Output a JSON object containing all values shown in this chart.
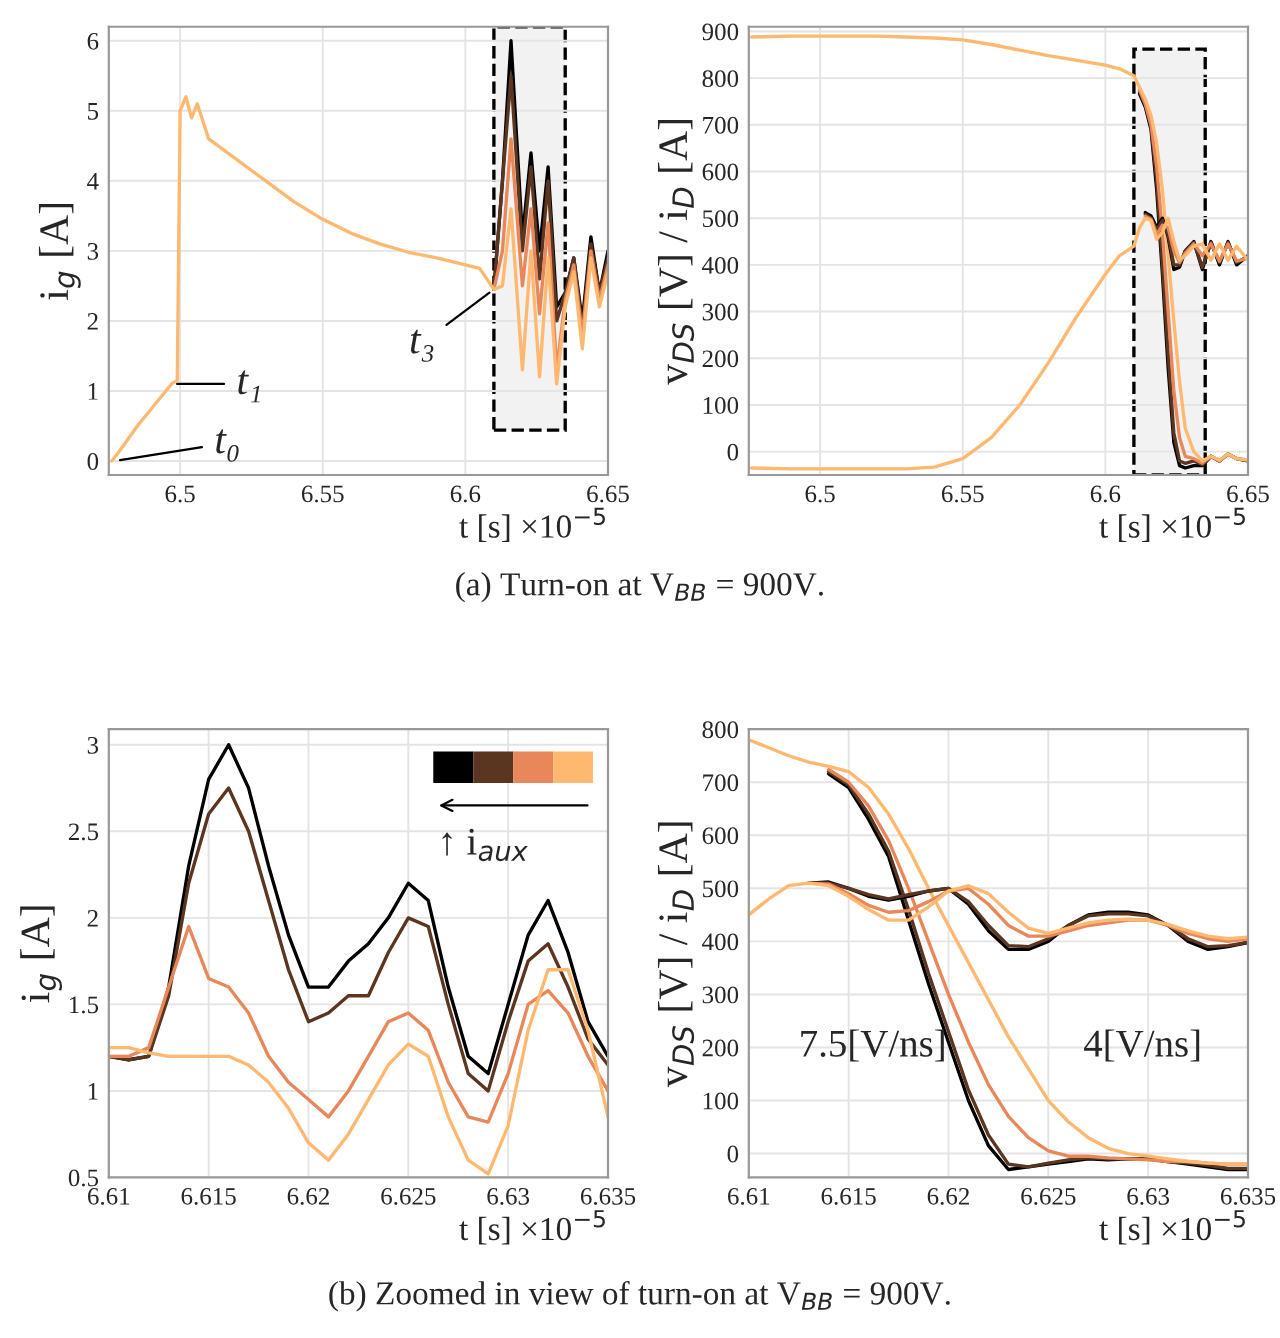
{
  "chart_data": [
    {
      "type": "line",
      "xlabel": "t [s] ×10$^{−5}$",
      "ylabel": "i$_{g}$ [A]",
      "xlim": [
        6.475,
        6.65
      ],
      "ylim": [
        -0.2,
        6.2
      ],
      "xticks": [
        6.5,
        6.55,
        6.6,
        6.65
      ],
      "yticks": [
        0,
        1,
        2,
        3,
        4,
        5,
        6
      ],
      "grid": true,
      "legend": false,
      "x": [
        6.476,
        6.478,
        6.485,
        6.49,
        6.495,
        6.497,
        6.499,
        6.5,
        6.502,
        6.504,
        6.506,
        6.51,
        6.52,
        6.53,
        6.54,
        6.55,
        6.56,
        6.57,
        6.58,
        6.59,
        6.6,
        6.605,
        6.61,
        6.613,
        6.616,
        6.62,
        6.623,
        6.626,
        6.629,
        6.632,
        6.635,
        6.638,
        6.641,
        6.644,
        6.647,
        6.65
      ],
      "series": [
        {
          "color": "#000000",
          "values": [
            null,
            null,
            null,
            null,
            null,
            null,
            null,
            null,
            null,
            null,
            null,
            null,
            null,
            null,
            null,
            null,
            null,
            null,
            null,
            null,
            null,
            null,
            2.45,
            4.0,
            6.0,
            3.2,
            4.4,
            3.0,
            4.2,
            2.2,
            2.4,
            2.9,
            2.0,
            3.2,
            2.4,
            3.0
          ]
        },
        {
          "color": "#5a3520",
          "values": [
            null,
            null,
            null,
            null,
            null,
            null,
            null,
            null,
            null,
            null,
            null,
            null,
            null,
            null,
            null,
            null,
            null,
            null,
            null,
            null,
            null,
            null,
            2.45,
            4.0,
            5.5,
            3.0,
            4.2,
            2.6,
            4.0,
            2.0,
            2.4,
            2.9,
            1.9,
            3.1,
            2.4,
            2.9
          ]
        },
        {
          "color": "#e8875a",
          "values": [
            null,
            null,
            null,
            null,
            null,
            null,
            null,
            null,
            null,
            null,
            null,
            null,
            null,
            null,
            null,
            null,
            null,
            null,
            null,
            null,
            null,
            null,
            2.45,
            3.0,
            4.6,
            2.5,
            3.6,
            2.1,
            3.4,
            1.3,
            2.3,
            2.8,
            1.8,
            3.0,
            2.3,
            2.8
          ]
        },
        {
          "color": "#ffb870",
          "values": [
            0.0,
            0.1,
            0.5,
            0.75,
            1.0,
            1.1,
            1.15,
            5.0,
            5.2,
            4.9,
            5.1,
            4.6,
            4.3,
            4.0,
            3.7,
            3.45,
            3.25,
            3.1,
            2.98,
            2.9,
            2.8,
            2.75,
            2.45,
            2.5,
            3.6,
            1.3,
            3.0,
            1.2,
            2.9,
            1.1,
            2.2,
            2.7,
            1.6,
            2.9,
            2.2,
            2.7
          ]
        }
      ],
      "bands": [
        {
          "axis": "x",
          "from": 6.61,
          "to": 6.635
        }
      ],
      "annotations": [
        "(a) Turn-on at V$_{BB}$ = 900V.",
        {
          "text": "t₀",
          "x": 6.477,
          "y": 0.0
        },
        {
          "text": "t₁",
          "x": 6.497,
          "y": 1.1
        },
        {
          "text": "t₃",
          "x": 6.61,
          "y": 2.45
        }
      ]
    },
    {
      "type": "line",
      "xlabel": "t [s] ×10$^{−5}$",
      "ylabel": "v$_{DS}$ [V] / i$_{D}$ [A]",
      "xlim": [
        6.475,
        6.65
      ],
      "ylim": [
        -50,
        910
      ],
      "xticks": [
        6.5,
        6.55,
        6.6,
        6.65
      ],
      "yticks": [
        0,
        100,
        200,
        300,
        400,
        500,
        600,
        700,
        800,
        900
      ],
      "grid": true,
      "legend": false,
      "x": [
        6.476,
        6.49,
        6.5,
        6.51,
        6.52,
        6.53,
        6.54,
        6.55,
        6.56,
        6.57,
        6.58,
        6.59,
        6.6,
        6.605,
        6.61,
        6.612,
        6.614,
        6.616,
        6.618,
        6.62,
        6.622,
        6.624,
        6.626,
        6.628,
        6.631,
        6.634,
        6.637,
        6.64,
        6.643,
        6.646,
        6.65
      ],
      "series": [
        {
          "color": "#000000",
          "values": [
            null,
            null,
            null,
            null,
            null,
            null,
            null,
            null,
            null,
            null,
            null,
            null,
            null,
            null,
            null,
            766,
            738,
            690,
            560,
            380,
            180,
            20,
            -30,
            -35,
            -30,
            -30,
            -10,
            -20,
            -5,
            -15,
            -20
          ]
        },
        {
          "color": "#5a3520",
          "values": [
            null,
            null,
            null,
            null,
            null,
            null,
            null,
            null,
            null,
            null,
            null,
            null,
            null,
            null,
            null,
            770,
            742,
            695,
            580,
            400,
            210,
            40,
            -20,
            -25,
            -20,
            -28,
            -10,
            -20,
            -5,
            -15,
            -20
          ]
        },
        {
          "color": "#e8875a",
          "values": [
            null,
            null,
            null,
            null,
            null,
            null,
            null,
            null,
            null,
            null,
            null,
            null,
            null,
            null,
            null,
            775,
            745,
            700,
            610,
            470,
            300,
            130,
            30,
            -10,
            -15,
            -25,
            -10,
            -20,
            -5,
            -15,
            -18
          ]
        },
        {
          "color": "#ffb870",
          "values": [
            888,
            890,
            890,
            890,
            890,
            888,
            886,
            882,
            872,
            860,
            848,
            838,
            828,
            820,
            805,
            780,
            755,
            720,
            660,
            560,
            420,
            280,
            150,
            50,
            0,
            -20,
            -10,
            -18,
            -5,
            -15,
            -18
          ]
        },
        {
          "color": "#000000",
          "values": [
            null,
            null,
            null,
            null,
            null,
            null,
            null,
            null,
            null,
            null,
            null,
            null,
            null,
            null,
            null,
            null,
            512,
            505,
            480,
            500,
            460,
            390,
            395,
            430,
            450,
            390,
            450,
            400,
            450,
            400,
            420
          ]
        },
        {
          "color": "#5a3520",
          "values": [
            null,
            null,
            null,
            null,
            null,
            null,
            null,
            null,
            null,
            null,
            null,
            null,
            null,
            null,
            null,
            null,
            508,
            500,
            475,
            495,
            465,
            400,
            400,
            430,
            448,
            395,
            448,
            405,
            448,
            405,
            418
          ]
        },
        {
          "color": "#e8875a",
          "values": [
            null,
            null,
            null,
            null,
            null,
            null,
            null,
            null,
            null,
            null,
            null,
            null,
            null,
            null,
            null,
            null,
            504,
            498,
            465,
            485,
            480,
            430,
            405,
            425,
            445,
            420,
            445,
            408,
            445,
            408,
            414
          ]
        },
        {
          "color": "#ffb870",
          "values": [
            -35,
            -37,
            -37,
            -37,
            -37,
            -37,
            -33,
            -15,
            30,
            100,
            190,
            290,
            380,
            420,
            440,
            480,
            500,
            495,
            455,
            470,
            500,
            450,
            410,
            420,
            440,
            445,
            410,
            445,
            410,
            440,
            410
          ]
        }
      ],
      "bands": [
        {
          "axis": "x",
          "from": 6.61,
          "to": 6.635
        }
      ]
    },
    {
      "type": "line",
      "xlabel": "t [s] ×10$^{−5}$",
      "ylabel": "i$_{g}$ [A]",
      "xlim": [
        6.61,
        6.635
      ],
      "ylim": [
        0.5,
        3.09
      ],
      "xticks": [
        6.61,
        6.615,
        6.62,
        6.625,
        6.63,
        6.635
      ],
      "yticks": [
        0.5,
        1,
        1.5,
        2,
        2.5,
        3
      ],
      "grid": true,
      "legend": false,
      "x": [
        6.61,
        6.611,
        6.612,
        6.613,
        6.614,
        6.615,
        6.616,
        6.617,
        6.618,
        6.619,
        6.62,
        6.621,
        6.622,
        6.623,
        6.624,
        6.625,
        6.626,
        6.627,
        6.628,
        6.629,
        6.63,
        6.631,
        6.632,
        6.633,
        6.634,
        6.635
      ],
      "series": [
        {
          "color": "#000000",
          "values": [
            1.2,
            1.18,
            1.2,
            1.6,
            2.3,
            2.8,
            3.0,
            2.75,
            2.3,
            1.9,
            1.6,
            1.6,
            1.75,
            1.85,
            2.0,
            2.2,
            2.1,
            1.6,
            1.2,
            1.1,
            1.5,
            1.9,
            2.1,
            1.8,
            1.4,
            1.2
          ]
        },
        {
          "color": "#5a3520",
          "values": [
            1.2,
            1.18,
            1.2,
            1.55,
            2.2,
            2.6,
            2.75,
            2.5,
            2.1,
            1.7,
            1.4,
            1.45,
            1.55,
            1.55,
            1.8,
            2.0,
            1.95,
            1.5,
            1.1,
            1.0,
            1.4,
            1.75,
            1.85,
            1.6,
            1.3,
            1.15
          ]
        },
        {
          "color": "#e8875a",
          "values": [
            1.2,
            1.2,
            1.25,
            1.6,
            1.95,
            1.65,
            1.6,
            1.45,
            1.2,
            1.05,
            0.95,
            0.85,
            1.0,
            1.2,
            1.4,
            1.45,
            1.35,
            1.05,
            0.85,
            0.82,
            1.1,
            1.5,
            1.58,
            1.45,
            1.2,
            1.0
          ]
        },
        {
          "color": "#ffb870",
          "values": [
            1.25,
            1.25,
            1.22,
            1.2,
            1.2,
            1.2,
            1.2,
            1.15,
            1.05,
            0.9,
            0.7,
            0.6,
            0.75,
            0.95,
            1.15,
            1.27,
            1.2,
            0.85,
            0.6,
            0.52,
            0.8,
            1.35,
            1.7,
            1.7,
            1.35,
            0.85
          ]
        }
      ],
      "annotations": [
        "(b) Zoomed in view of turn-on at V$_{BB}$ = 900V.",
        "↑ i$_{aux}$"
      ]
    },
    {
      "type": "line",
      "xlabel": "t [s] ×10$^{−5}$",
      "ylabel": "v$_{DS}$ [V] / i$_{D}$ [A]",
      "xlim": [
        6.61,
        6.635
      ],
      "ylim": [
        -45,
        800
      ],
      "xticks": [
        6.61,
        6.615,
        6.62,
        6.625,
        6.63,
        6.635
      ],
      "yticks": [
        0,
        100,
        200,
        300,
        400,
        500,
        600,
        700,
        800
      ],
      "grid": true,
      "legend": false,
      "x": [
        6.61,
        6.611,
        6.612,
        6.613,
        6.614,
        6.615,
        6.616,
        6.617,
        6.618,
        6.619,
        6.62,
        6.621,
        6.622,
        6.623,
        6.624,
        6.625,
        6.626,
        6.627,
        6.628,
        6.629,
        6.63,
        6.631,
        6.632,
        6.633,
        6.634,
        6.635
      ],
      "series": [
        {
          "color": "#000000",
          "values": [
            null,
            null,
            null,
            null,
            716,
            690,
            630,
            560,
            440,
            320,
            210,
            100,
            15,
            -30,
            -25,
            -20,
            -15,
            -10,
            -12,
            -10,
            -10,
            -15,
            -20,
            -25,
            -30,
            -30
          ]
        },
        {
          "color": "#5a3520",
          "values": [
            null,
            null,
            null,
            null,
            720,
            695,
            640,
            570,
            460,
            340,
            230,
            120,
            35,
            -20,
            -25,
            -18,
            -12,
            -8,
            -10,
            -10,
            -10,
            -15,
            -18,
            -22,
            -28,
            -28
          ]
        },
        {
          "color": "#e8875a",
          "values": [
            null,
            null,
            null,
            null,
            724,
            700,
            655,
            590,
            500,
            400,
            300,
            210,
            130,
            70,
            30,
            5,
            -5,
            -5,
            -8,
            -10,
            -12,
            -15,
            -15,
            -18,
            -20,
            -20
          ]
        },
        {
          "color": "#ffb870",
          "values": [
            780,
            765,
            750,
            738,
            730,
            720,
            690,
            640,
            575,
            500,
            430,
            360,
            290,
            220,
            160,
            100,
            60,
            30,
            10,
            0,
            -5,
            -10,
            -15,
            -18,
            -20,
            -20
          ]
        },
        {
          "color": "#000000",
          "values": [
            null,
            null,
            null,
            510,
            512,
            500,
            485,
            478,
            485,
            495,
            500,
            470,
            420,
            385,
            385,
            400,
            430,
            450,
            455,
            455,
            450,
            430,
            400,
            385,
            390,
            398
          ]
        },
        {
          "color": "#5a3520",
          "values": [
            null,
            null,
            null,
            510,
            510,
            500,
            488,
            480,
            488,
            495,
            500,
            475,
            430,
            392,
            390,
            405,
            430,
            448,
            452,
            452,
            448,
            430,
            405,
            390,
            392,
            398
          ]
        },
        {
          "color": "#e8875a",
          "values": [
            null,
            null,
            null,
            510,
            508,
            490,
            468,
            455,
            458,
            475,
            495,
            500,
            470,
            430,
            410,
            410,
            420,
            430,
            435,
            440,
            440,
            430,
            415,
            405,
            400,
            405
          ]
        },
        {
          "color": "#ffb870",
          "values": [
            450,
            480,
            505,
            510,
            505,
            485,
            460,
            440,
            440,
            465,
            495,
            505,
            490,
            455,
            425,
            415,
            425,
            435,
            440,
            442,
            440,
            432,
            420,
            410,
            405,
            408
          ]
        }
      ],
      "annotations": [
        "7.5[V/ns]",
        "4[V/ns]"
      ]
    }
  ]
}
